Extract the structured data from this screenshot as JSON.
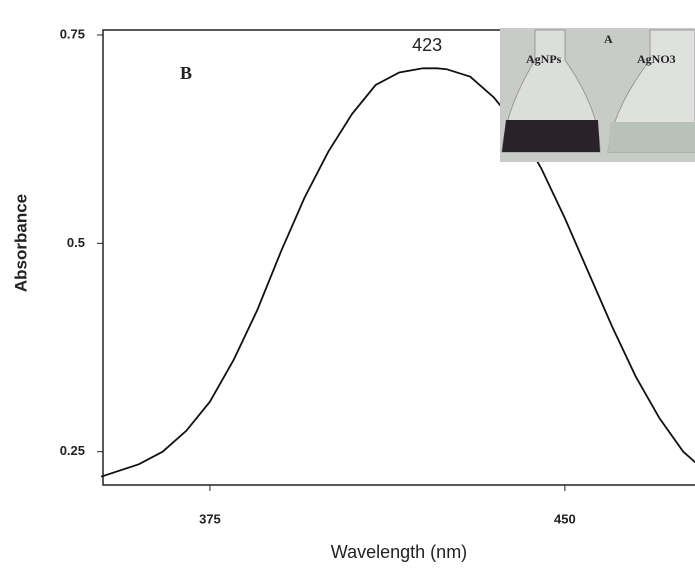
{
  "chart_data": {
    "type": "line",
    "x_label": "Wavelength (nm)",
    "y_label": "Absorbance",
    "peak_label": "423",
    "panel_label": "B",
    "inset": {
      "panel_label": "A",
      "left_label": "AgNPs",
      "right_label": "AgNO3"
    },
    "x": [
      352,
      360,
      365,
      370,
      375,
      380,
      385,
      390,
      395,
      400,
      405,
      410,
      415,
      420,
      423,
      425,
      430,
      435,
      440,
      445,
      450,
      455,
      460,
      465,
      470,
      475,
      478
    ],
    "series": [
      {
        "name": "Absorbance",
        "color": "#111111",
        "values": [
          0.22,
          0.235,
          0.25,
          0.275,
          0.31,
          0.36,
          0.42,
          0.49,
          0.555,
          0.61,
          0.655,
          0.69,
          0.705,
          0.71,
          0.71,
          0.709,
          0.7,
          0.675,
          0.64,
          0.59,
          0.53,
          0.465,
          0.4,
          0.34,
          0.29,
          0.25,
          0.235
        ]
      }
    ],
    "xlim": [
      352.4,
      477.5
    ],
    "xticks": [
      375,
      450
    ],
    "ylim": [
      0.21,
      0.756
    ],
    "yticks": [
      0.25,
      0.5,
      0.75
    ]
  }
}
